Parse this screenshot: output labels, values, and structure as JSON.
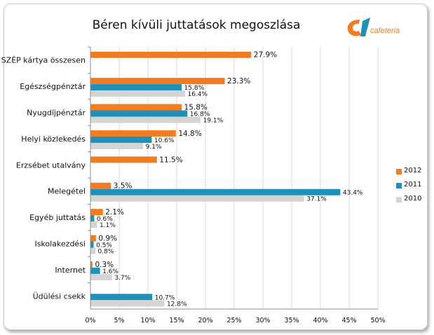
{
  "chart_data": {
    "type": "bar",
    "orientation": "horizontal",
    "title": "Béren kívüli juttatások megoszlása",
    "categories": [
      "SZÉP kártya összesen",
      "Egészségpénztár",
      "Nyugdíjpénztár",
      "Helyi közlekedés",
      "Erzsébet utalvány",
      "Melegétel",
      "Egyéb juttatás",
      "Iskolakezdési",
      "Internet",
      "Üdülési csekk"
    ],
    "series": [
      {
        "name": "2012",
        "color": "#f47c20",
        "values": [
          27.9,
          23.3,
          15.8,
          14.8,
          11.5,
          3.5,
          2.1,
          0.9,
          0.3,
          null
        ],
        "labels": [
          "27.9%",
          "23.3%",
          "15.8%",
          "14.8%",
          "11.5%",
          "3.5%",
          "2.1%",
          "0.9%",
          "0.3%",
          ""
        ]
      },
      {
        "name": "2011",
        "color": "#1f91b9",
        "values": [
          null,
          15.8,
          16.8,
          10.6,
          null,
          43.4,
          0.6,
          0.5,
          1.6,
          10.7
        ],
        "labels": [
          "",
          "15.8%",
          "16.8%",
          "10.6%",
          "",
          "43.4%",
          "0.6%",
          "0.5%",
          "1.6%",
          "10.7%"
        ]
      },
      {
        "name": "2010",
        "color": "#d4d4d4",
        "values": [
          null,
          16.4,
          19.1,
          9.1,
          null,
          37.1,
          1.1,
          0.8,
          3.7,
          12.8
        ],
        "labels": [
          "",
          "16.4%",
          "19.1%",
          "9.1%",
          "",
          "37.1%",
          "1.1%",
          "0.8%",
          "3.7%",
          "12.8%"
        ]
      }
    ],
    "xlim": [
      0,
      50
    ],
    "xticks": [
      "0%",
      "5%",
      "10%",
      "15%",
      "20%",
      "25%",
      "30%",
      "35%",
      "40%",
      "45%",
      "50%"
    ],
    "grid": true,
    "legend_position": "right"
  },
  "logo": {
    "text": "cafeteria",
    "color": "#f47c20"
  }
}
